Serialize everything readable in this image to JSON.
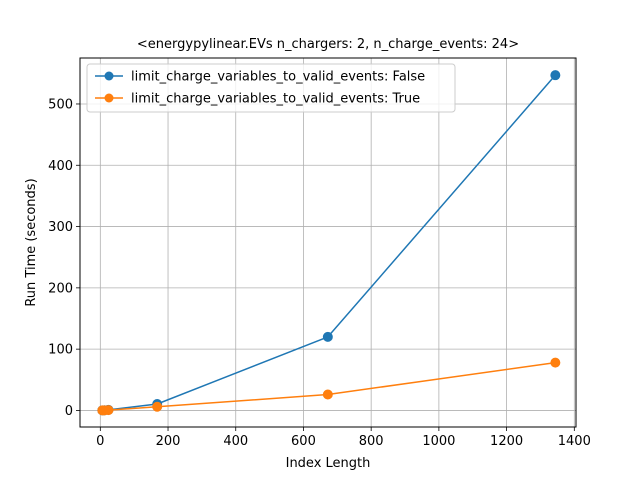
{
  "chart_data": {
    "type": "line",
    "title": "<energypylinear.EVs n_chargers: 2, n_charge_events: 24>",
    "xlabel": "Index Length",
    "ylabel": "Run Time (seconds)",
    "xlim": [
      -60,
      1405
    ],
    "ylim": [
      -27,
      575
    ],
    "xticks": [
      0,
      200,
      400,
      600,
      800,
      1000,
      1200,
      1400
    ],
    "xtick_labels": [
      "0",
      "200",
      "400",
      "600",
      "800",
      "1000",
      "1200",
      "1400"
    ],
    "yticks": [
      0,
      100,
      200,
      300,
      400,
      500
    ],
    "ytick_labels": [
      "0",
      "100",
      "200",
      "300",
      "400",
      "500"
    ],
    "grid": true,
    "legend_position": "top-left",
    "series": [
      {
        "name": "limit_charge_variables_to_valid_events: False",
        "color": "#1f77b4",
        "x": [
          6,
          12,
          24,
          168,
          672,
          1344
        ],
        "y": [
          0.2,
          0.4,
          1.0,
          10.5,
          120,
          547
        ]
      },
      {
        "name": "limit_charge_variables_to_valid_events: True",
        "color": "#ff7f0e",
        "x": [
          6,
          12,
          24,
          168,
          672,
          1344
        ],
        "y": [
          0.1,
          0.2,
          0.5,
          6.0,
          26,
          78
        ]
      }
    ]
  }
}
